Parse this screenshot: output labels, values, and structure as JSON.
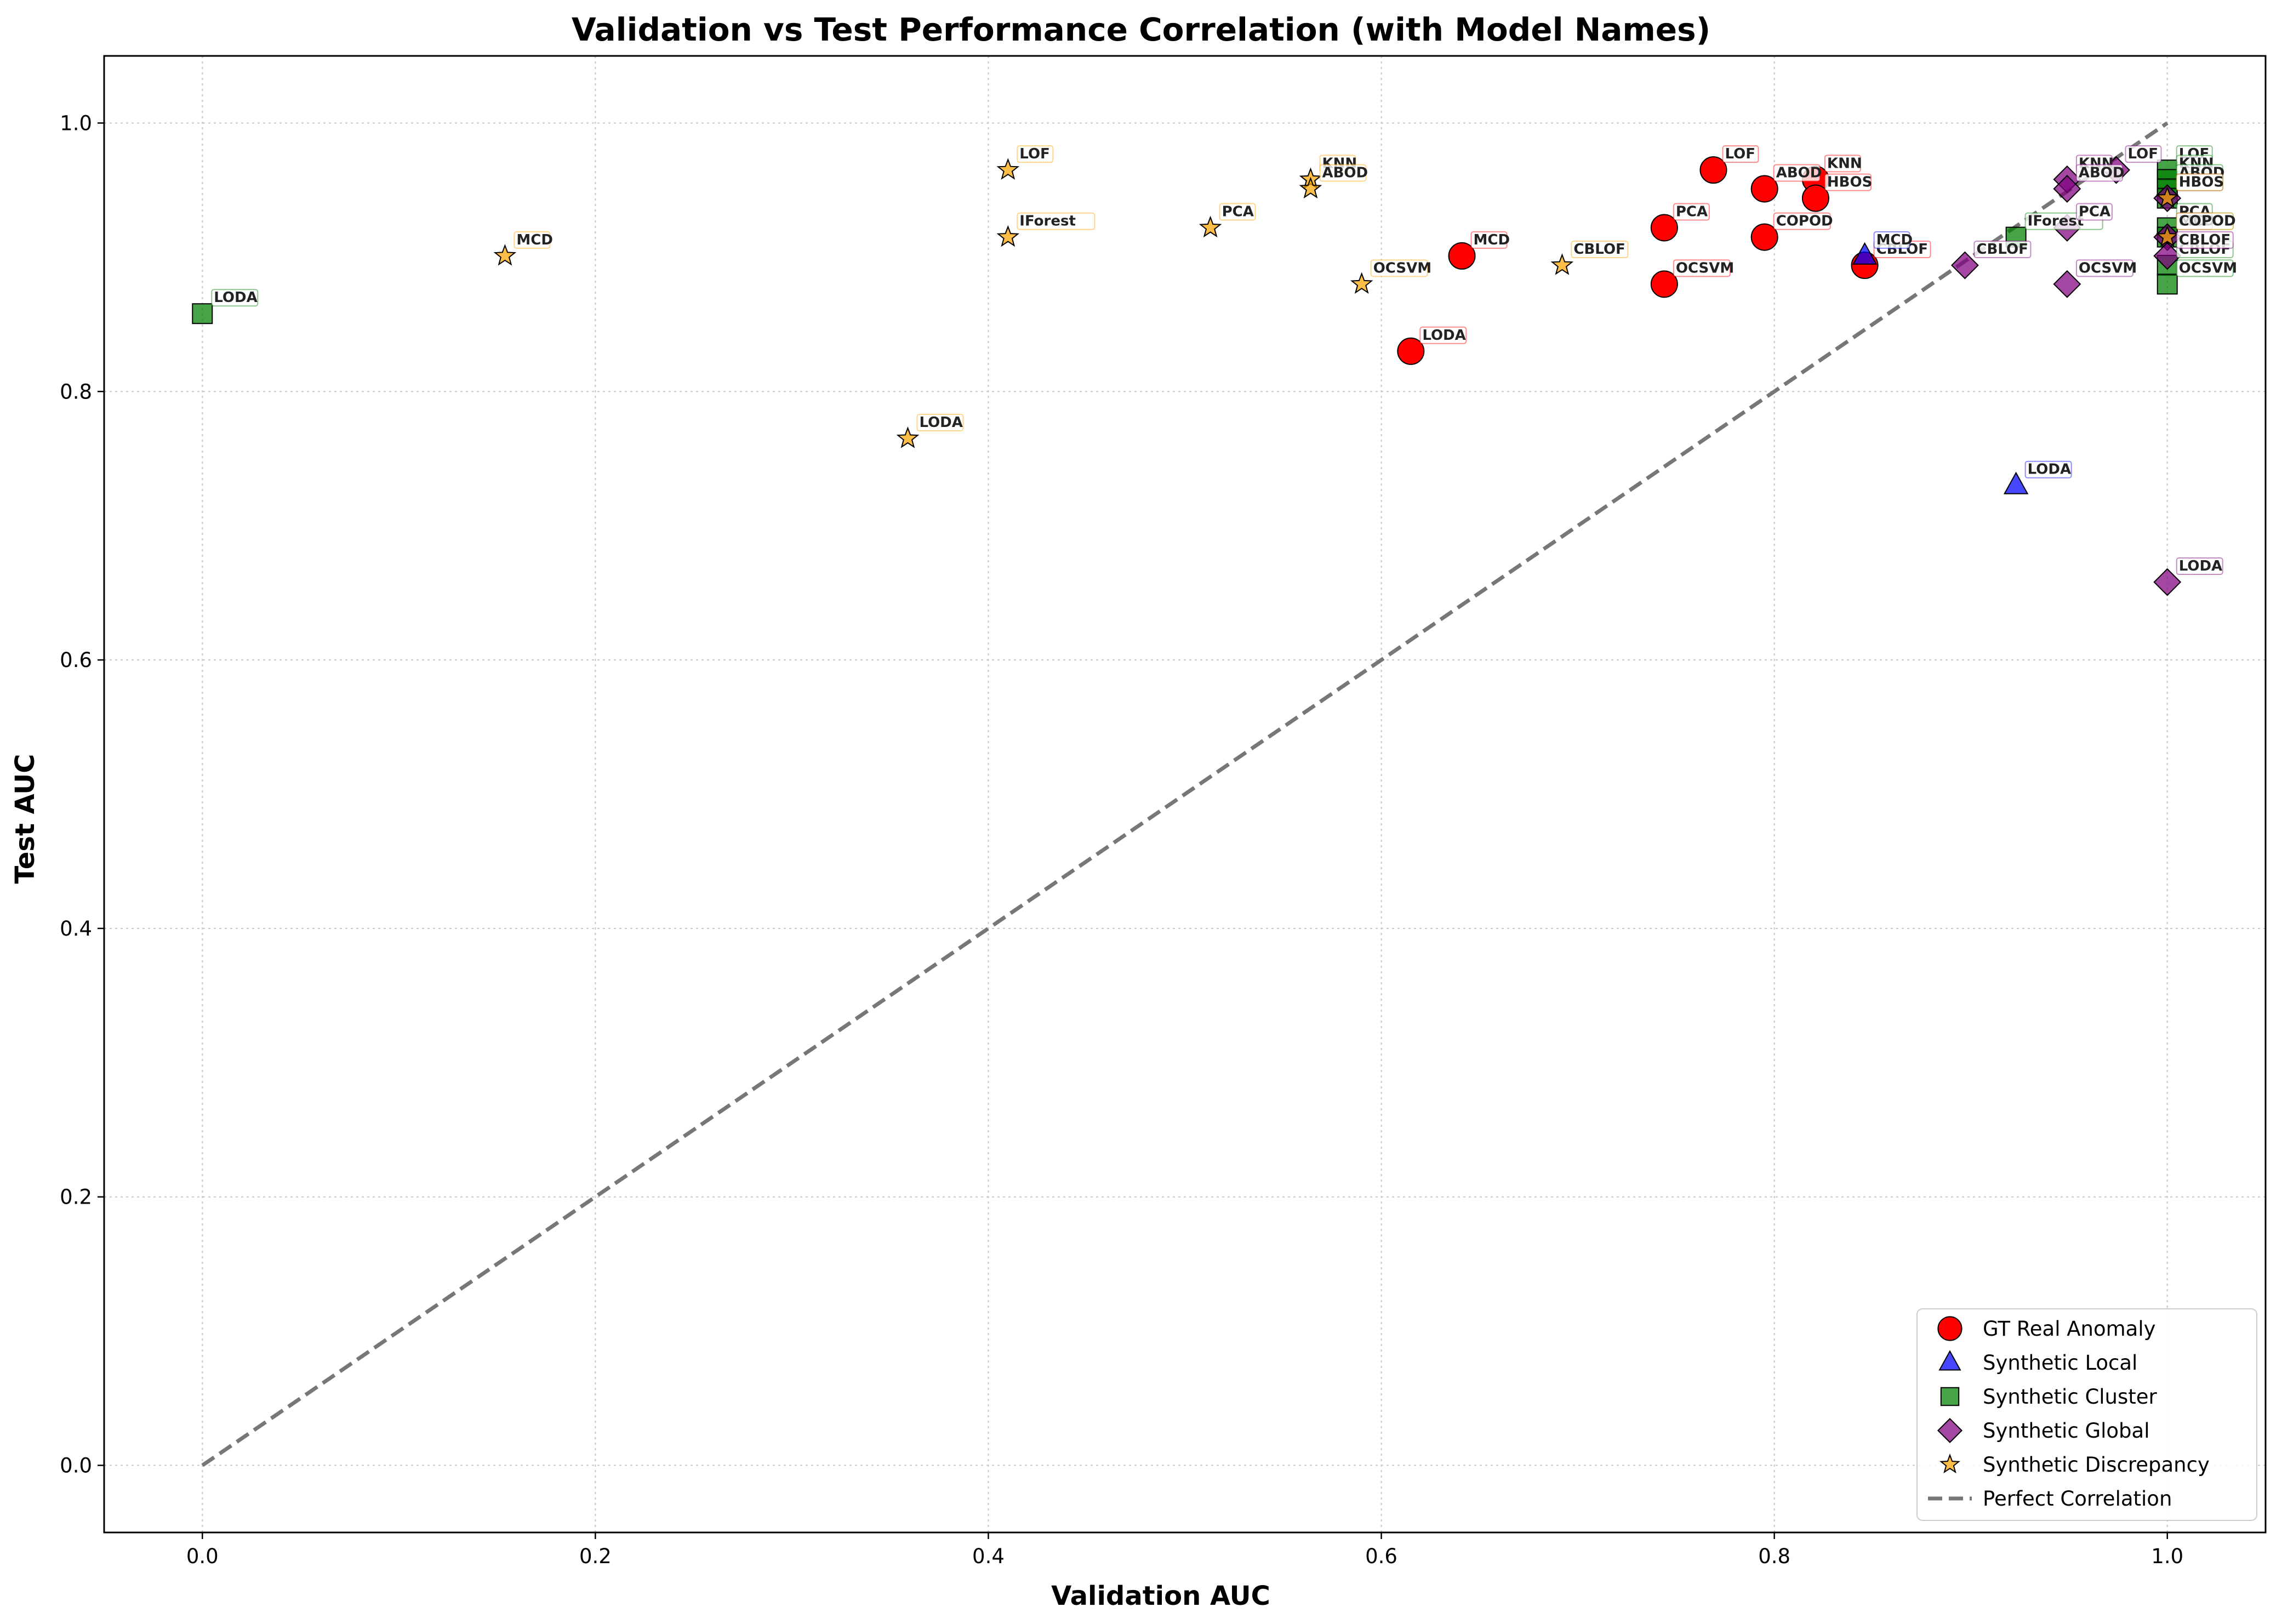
{
  "chart_data": {
    "type": "scatter",
    "title": "Validation vs Test Performance Correlation (with Model Names)",
    "xlabel": "Validation AUC",
    "ylabel": "Test AUC",
    "xlim": [
      -0.05,
      1.05
    ],
    "ylim": [
      -0.05,
      1.05
    ],
    "xticks": [
      "0.0",
      "0.2",
      "0.4",
      "0.6",
      "0.8",
      "1.0"
    ],
    "yticks": [
      "0.0",
      "0.2",
      "0.4",
      "0.6",
      "0.8",
      "1.0"
    ],
    "grid": true,
    "legend_position": "lower-right",
    "reference_line": {
      "name": "Perfect Correlation",
      "from": [
        0,
        0
      ],
      "to": [
        1,
        1
      ],
      "color": "#777777",
      "style": "dashed"
    },
    "series": [
      {
        "name": "GT Real Anomaly",
        "marker": "circle",
        "color": "#ff0000",
        "points": [
          {
            "label": "LOF",
            "x": 0.769,
            "y": 0.965
          },
          {
            "label": "KNN",
            "x": 0.821,
            "y": 0.958
          },
          {
            "label": "ABOD",
            "x": 0.795,
            "y": 0.951
          },
          {
            "label": "HBOS",
            "x": 0.821,
            "y": 0.944
          },
          {
            "label": "PCA",
            "x": 0.744,
            "y": 0.922
          },
          {
            "label": "COPOD",
            "x": 0.795,
            "y": 0.915
          },
          {
            "label": "MCD",
            "x": 0.641,
            "y": 0.901
          },
          {
            "label": "CBLOF",
            "x": 0.846,
            "y": 0.894
          },
          {
            "label": "OCSVM",
            "x": 0.744,
            "y": 0.88
          },
          {
            "label": "LODA",
            "x": 0.615,
            "y": 0.83
          }
        ]
      },
      {
        "name": "Synthetic Local",
        "marker": "triangle",
        "color": "#0000ff",
        "points": [
          {
            "label": "MCD",
            "x": 0.846,
            "y": 0.901
          },
          {
            "label": "LODA",
            "x": 0.923,
            "y": 0.73
          }
        ]
      },
      {
        "name": "Synthetic Cluster",
        "marker": "square",
        "color": "#008000",
        "points": [
          {
            "label": "LODA",
            "x": 0.0,
            "y": 0.858
          },
          {
            "label": "IForest",
            "x": 0.923,
            "y": 0.915
          },
          {
            "label": "LOF",
            "x": 1.0,
            "y": 0.965
          },
          {
            "label": "KNN",
            "x": 1.0,
            "y": 0.958
          },
          {
            "label": "ABOD",
            "x": 1.0,
            "y": 0.951
          },
          {
            "label": "HBOS",
            "x": 1.0,
            "y": 0.944
          },
          {
            "label": "PCA",
            "x": 1.0,
            "y": 0.922
          },
          {
            "label": "COPOD",
            "x": 1.0,
            "y": 0.915
          },
          {
            "label": "CBLOF",
            "x": 1.0,
            "y": 0.894
          },
          {
            "label": "OCSVM",
            "x": 1.0,
            "y": 0.88
          }
        ]
      },
      {
        "name": "Synthetic Global",
        "marker": "diamond",
        "color": "#800080",
        "points": [
          {
            "label": "LOF",
            "x": 0.974,
            "y": 0.965
          },
          {
            "label": "KNN",
            "x": 0.949,
            "y": 0.958
          },
          {
            "label": "ABOD",
            "x": 0.949,
            "y": 0.951
          },
          {
            "label": "PCA",
            "x": 0.949,
            "y": 0.922
          },
          {
            "label": "CBLOF",
            "x": 0.897,
            "y": 0.894
          },
          {
            "label": "OCSVM",
            "x": 0.949,
            "y": 0.88
          },
          {
            "label": "HBOS",
            "x": 1.0,
            "y": 0.944
          },
          {
            "label": "MCD",
            "x": 1.0,
            "y": 0.915
          },
          {
            "label": "CBLOF",
            "x": 1.0,
            "y": 0.901
          },
          {
            "label": "LODA",
            "x": 1.0,
            "y": 0.658
          }
        ]
      },
      {
        "name": "Synthetic Discrepancy",
        "marker": "star",
        "color": "#ffa500",
        "points": [
          {
            "label": "LOF",
            "x": 0.41,
            "y": 0.965
          },
          {
            "label": "IForest",
            "x": 0.41,
            "y": 0.915
          },
          {
            "label": "MCD",
            "x": 0.154,
            "y": 0.901
          },
          {
            "label": "PCA",
            "x": 0.513,
            "y": 0.922
          },
          {
            "label": "KNN",
            "x": 0.564,
            "y": 0.958
          },
          {
            "label": "ABOD",
            "x": 0.564,
            "y": 0.951
          },
          {
            "label": "OCSVM",
            "x": 0.59,
            "y": 0.88
          },
          {
            "label": "CBLOF",
            "x": 0.692,
            "y": 0.894
          },
          {
            "label": "LODA",
            "x": 0.359,
            "y": 0.765
          },
          {
            "label": "HBOS",
            "x": 1.0,
            "y": 0.944
          },
          {
            "label": "COPOD",
            "x": 1.0,
            "y": 0.915
          }
        ]
      }
    ]
  }
}
